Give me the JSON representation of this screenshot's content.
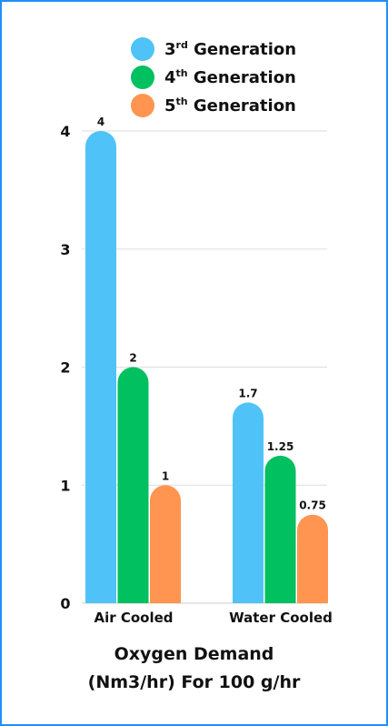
{
  "chart_data": {
    "type": "bar",
    "categories": [
      "Air Cooled",
      "Water Cooled"
    ],
    "series": [
      {
        "name_base": "3",
        "name_sup": "rd",
        "name_rest": " Generation",
        "color": "#4fc3f7",
        "values": [
          4,
          1.7
        ],
        "labels": [
          "4",
          "1.7"
        ]
      },
      {
        "name_base": "4",
        "name_sup": "th",
        "name_rest": " Generation",
        "color": "#00c060",
        "values": [
          2,
          1.25
        ],
        "labels": [
          "2",
          "1.25"
        ]
      },
      {
        "name_base": "5",
        "name_sup": "th",
        "name_rest": " Generation",
        "color": "#ff9550",
        "values": [
          1,
          0.75
        ],
        "labels": [
          "1",
          "0.75"
        ]
      }
    ],
    "y_ticks": [
      "0",
      "1",
      "2",
      "3",
      "4"
    ],
    "ylim": [
      0,
      4
    ],
    "grid": true,
    "legend_position": "top",
    "xlabel_line1": "Oxygen Demand",
    "xlabel_line2": "(Nm3/hr) For 100 g/hr"
  }
}
